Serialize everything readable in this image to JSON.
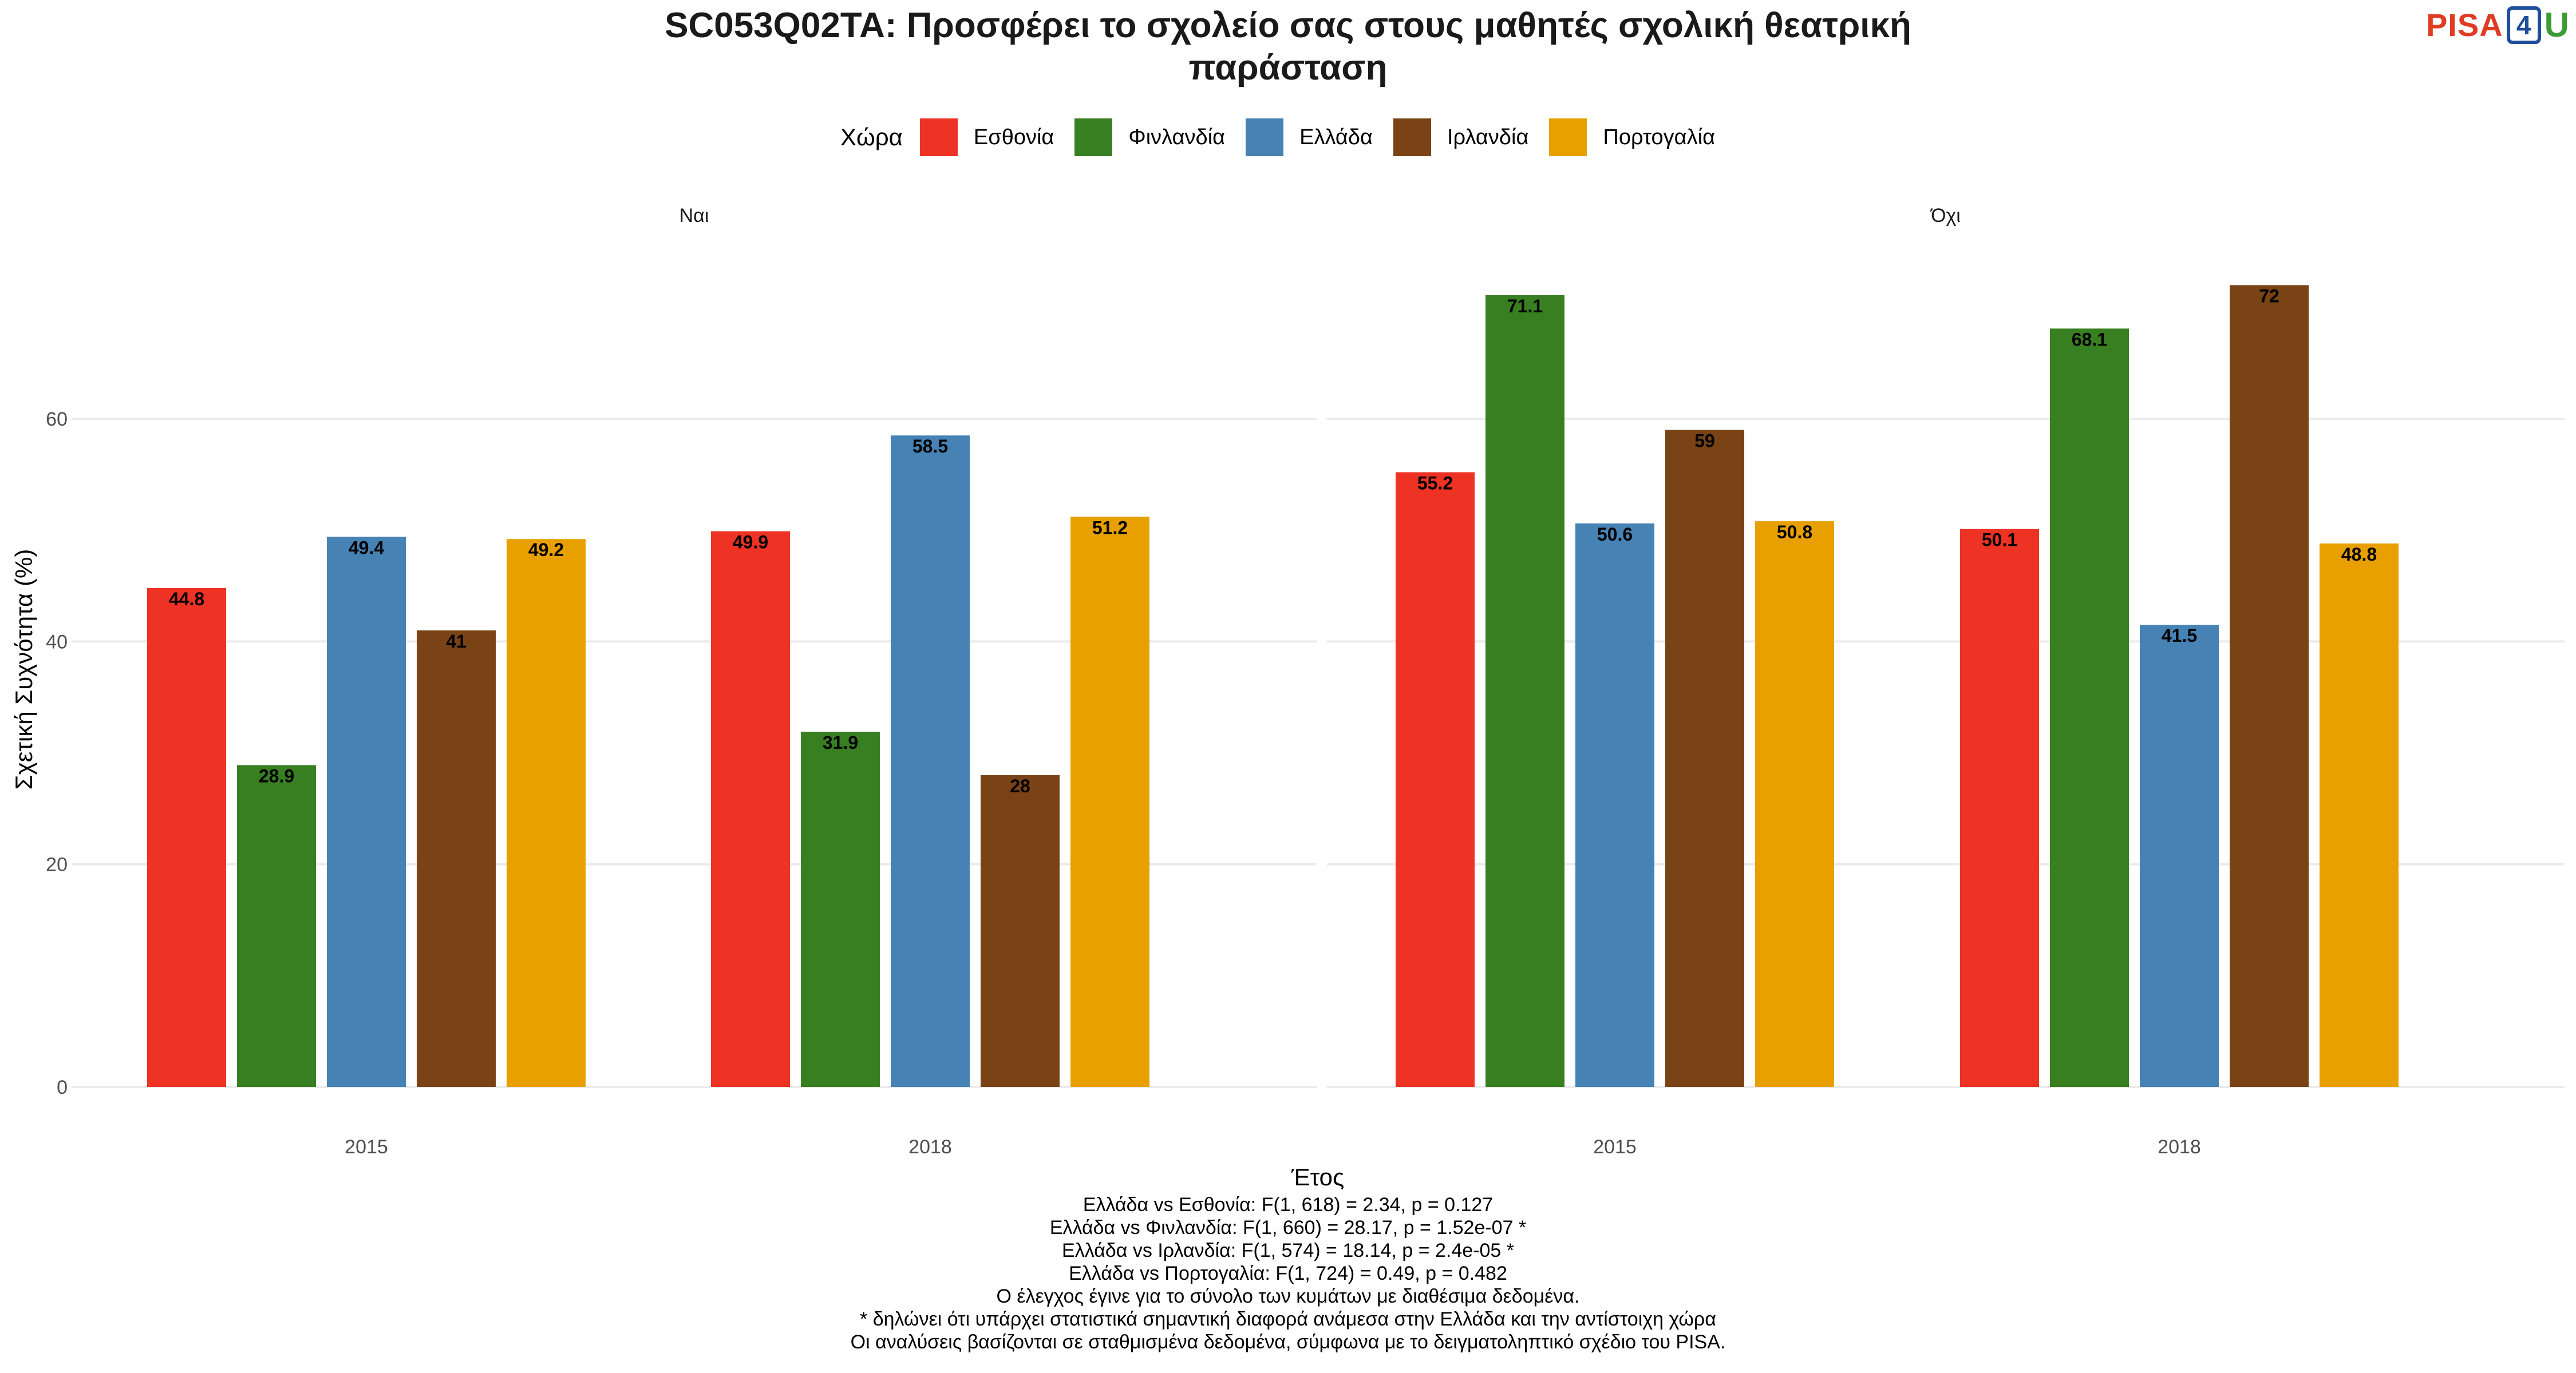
{
  "title_lines": [
    "SC053Q02TA: Προσφέρει το σχολείο σας στους μαθητές σχολική θεατρική",
    "παράσταση"
  ],
  "logo": {
    "text": "PISA",
    "digit": "4",
    "letter": "U"
  },
  "legend": {
    "title": "Χώρα",
    "items": [
      {
        "name": "Εσθονία",
        "color": "#EE3224"
      },
      {
        "name": "Φινλανδία",
        "color": "#387F22"
      },
      {
        "name": "Ελλάδα",
        "color": "#4682B4"
      },
      {
        "name": "Ιρλανδία",
        "color": "#7A4315"
      },
      {
        "name": "Πορτογαλία",
        "color": "#E8A000"
      }
    ]
  },
  "chart_data": {
    "type": "bar",
    "xlabel": "Έτος",
    "ylabel": "Σχετική Συχνότητα (%)",
    "ylim": [
      0,
      75
    ],
    "yticks": [
      0,
      20,
      40,
      60
    ],
    "grid": true,
    "legend_position": "top",
    "categories": [
      "2015",
      "2018"
    ],
    "panels": [
      {
        "name": "Ναι",
        "series": [
          {
            "name": "Εσθονία",
            "values": [
              44.8,
              49.9
            ]
          },
          {
            "name": "Φινλανδία",
            "values": [
              28.9,
              31.9
            ]
          },
          {
            "name": "Ελλάδα",
            "values": [
              49.4,
              58.5
            ]
          },
          {
            "name": "Ιρλανδία",
            "values": [
              41,
              28
            ]
          },
          {
            "name": "Πορτογαλία",
            "values": [
              49.2,
              51.2
            ]
          }
        ]
      },
      {
        "name": "Όχι",
        "series": [
          {
            "name": "Εσθονία",
            "values": [
              55.2,
              50.1
            ]
          },
          {
            "name": "Φινλανδία",
            "values": [
              71.1,
              68.1
            ]
          },
          {
            "name": "Ελλάδα",
            "values": [
              50.6,
              41.5
            ]
          },
          {
            "name": "Ιρλανδία",
            "values": [
              59,
              72
            ]
          },
          {
            "name": "Πορτογαλία",
            "values": [
              50.8,
              48.8
            ]
          }
        ]
      }
    ]
  },
  "footer_lines": [
    "Ελλάδα vs Εσθονία: F(1, 618) = 2.34, p = 0.127",
    "Ελλάδα vs Φινλανδία: F(1, 660) = 28.17, p = 1.52e-07 *",
    "Ελλάδα vs Ιρλανδία: F(1, 574) = 18.14, p = 2.4e-05 *",
    "Ελλάδα vs Πορτογαλία: F(1, 724) = 0.49, p = 0.482",
    "Ο έλεγχος έγινε για το σύνολο των κυμάτων με διαθέσιμα δεδομένα.",
    "* δηλώνει ότι υπάρχει στατιστικά σημαντική διαφορά ανάμεσα στην Ελλάδα και την αντίστοιχη χώρα",
    "Οι αναλύσεις βασίζονται σε σταθμισμένα δεδομένα, σύμφωνα με το δειγματοληπτικό σχέδιο του PISA."
  ]
}
